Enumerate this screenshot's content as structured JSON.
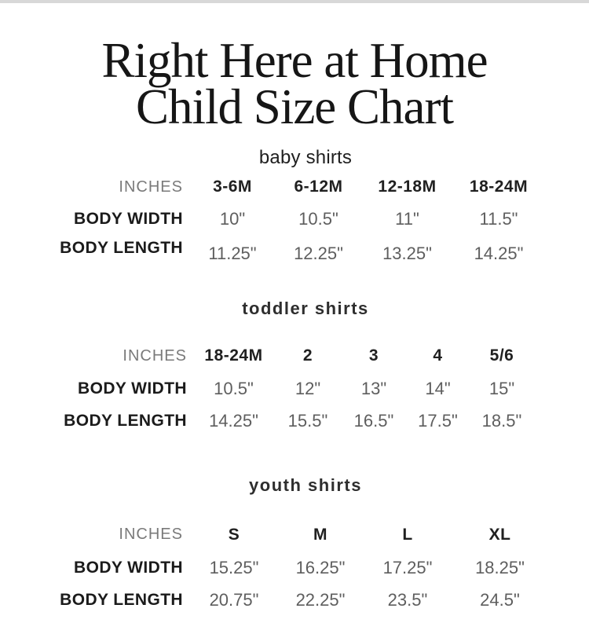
{
  "page": {
    "title_line1": "Right Here at Home",
    "title_line2": "Child Size Chart"
  },
  "colors": {
    "background": "#ffffff",
    "top_bar": "#d8d8d8",
    "title_text": "#161616",
    "section_heading_text": "#2e2e2e",
    "size_header_text": "#202020",
    "row_label_text": "#1b1b1b",
    "unit_label_text": "#7a7a7a",
    "value_text": "#5e5e5e"
  },
  "sections": [
    {
      "heading": "baby shirts",
      "unit_label": "INCHES",
      "size_headers": [
        "3-6M",
        "6-12M",
        "12-18M",
        "18-24M"
      ],
      "rows": [
        {
          "label": "BODY WIDTH",
          "values": [
            "10\"",
            "10.5\"",
            "11\"",
            "11.5\""
          ]
        },
        {
          "label": "BODY LENGTH",
          "values": [
            "11.25\"",
            "12.25\"",
            "13.25\"",
            "14.25\""
          ]
        }
      ]
    },
    {
      "heading": "toddler shirts",
      "unit_label": "INCHES",
      "size_headers": [
        "18-24M",
        "2",
        "3",
        "4",
        "5/6"
      ],
      "rows": [
        {
          "label": "BODY WIDTH",
          "values": [
            "10.5\"",
            "12\"",
            "13\"",
            "14\"",
            "15\""
          ]
        },
        {
          "label": "BODY LENGTH",
          "values": [
            "14.25\"",
            "15.5\"",
            "16.5\"",
            "17.5\"",
            "18.5\""
          ]
        }
      ]
    },
    {
      "heading": "youth shirts",
      "unit_label": "INCHES",
      "size_headers": [
        "S",
        "M",
        "L",
        "XL"
      ],
      "rows": [
        {
          "label": "BODY WIDTH",
          "values": [
            "15.25\"",
            "16.25\"",
            "17.25\"",
            "18.25\""
          ]
        },
        {
          "label": "BODY LENGTH",
          "values": [
            "20.75\"",
            "22.25\"",
            "23.5\"",
            "24.5\""
          ]
        }
      ]
    }
  ],
  "chart_data": [
    {
      "type": "table",
      "title": "baby shirts",
      "columns": [
        "INCHES",
        "3-6M",
        "6-12M",
        "12-18M",
        "18-24M"
      ],
      "rows": [
        [
          "BODY WIDTH",
          "10\"",
          "10.5\"",
          "11\"",
          "11.5\""
        ],
        [
          "BODY LENGTH",
          "11.25\"",
          "12.25\"",
          "13.25\"",
          "14.25\""
        ]
      ]
    },
    {
      "type": "table",
      "title": "toddler shirts",
      "columns": [
        "INCHES",
        "18-24M",
        "2",
        "3",
        "4",
        "5/6"
      ],
      "rows": [
        [
          "BODY WIDTH",
          "10.5\"",
          "12\"",
          "13\"",
          "14\"",
          "15\""
        ],
        [
          "BODY LENGTH",
          "14.25\"",
          "15.5\"",
          "16.5\"",
          "17.5\"",
          "18.5\""
        ]
      ]
    },
    {
      "type": "table",
      "title": "youth shirts",
      "columns": [
        "INCHES",
        "S",
        "M",
        "L",
        "XL"
      ],
      "rows": [
        [
          "BODY WIDTH",
          "15.25\"",
          "16.25\"",
          "17.25\"",
          "18.25\""
        ],
        [
          "BODY LENGTH",
          "20.75\"",
          "22.25\"",
          "23.5\"",
          "24.5\""
        ]
      ]
    }
  ]
}
